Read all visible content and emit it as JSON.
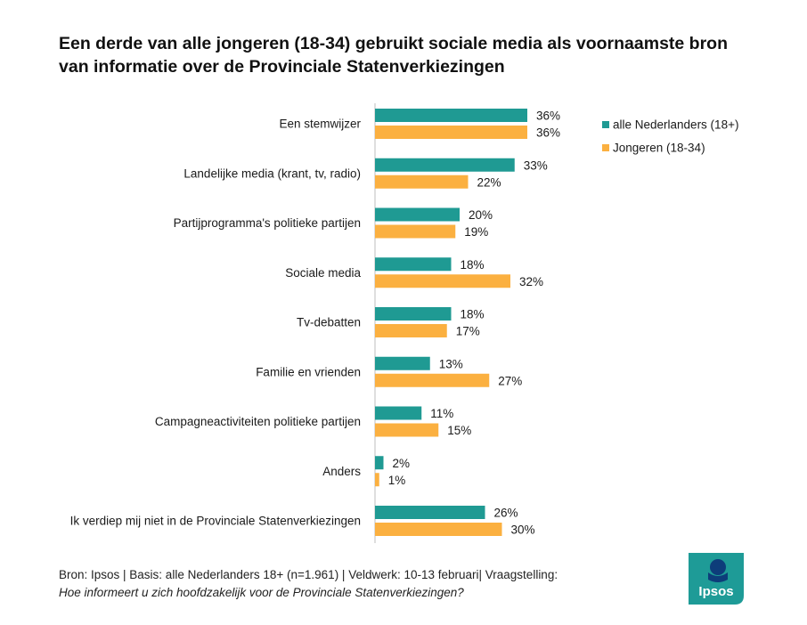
{
  "title_lines": [
    "Een derde van alle jongeren (18-34) gebruikt sociale media als voornaamste bron",
    "van informatie over de Provinciale Statenverkiezingen"
  ],
  "chart_data": {
    "type": "bar",
    "orientation": "horizontal",
    "title": "Een derde van alle jongeren (18-34) gebruikt sociale media als voornaamste bron van informatie over de Provinciale Statenverkiezingen",
    "categories": [
      "Een stemwijzer",
      "Landelijke media (krant, tv, radio)",
      "Partijprogramma's politieke partijen",
      "Sociale media",
      "Tv-debatten",
      "Familie en vrienden",
      "Campagneactiviteiten politieke partijen",
      "Anders",
      "Ik verdiep mij niet in de Provinciale Statenverkiezingen"
    ],
    "series": [
      {
        "name": "alle Nederlanders (18+)",
        "color": "#1f9a93",
        "values": [
          36,
          33,
          20,
          18,
          18,
          13,
          11,
          2,
          26
        ]
      },
      {
        "name": "Jongeren (18-34)",
        "color": "#fbb040",
        "values": [
          36,
          22,
          19,
          32,
          17,
          27,
          15,
          1,
          30
        ]
      }
    ],
    "value_suffix": "%",
    "xlim": [
      0,
      100
    ],
    "legend_position": "top-right",
    "grid": false
  },
  "footer": {
    "line1": "Bron: Ipsos |  Basis: alle Nederlanders 18+ (n=1.961) | Veldwerk: 10-13 februari| Vraagstelling:",
    "line2": "Hoe informeert u zich hoofdzakelijk voor de Provinciale Statenverkiezingen?"
  },
  "logo": {
    "text": "Ipsos",
    "color": "#1e9b97",
    "accent": "#0d3d7a"
  }
}
